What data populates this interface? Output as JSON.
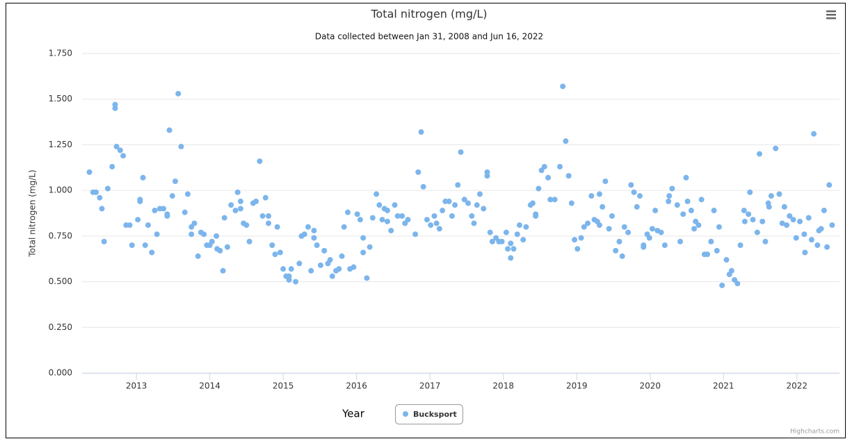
{
  "chart_data": {
    "type": "scatter",
    "title": "Total nitrogen (mg/L)",
    "subtitle": "Data collected between Jan 31, 2008 and Jun 16, 2022",
    "x_label": "Year",
    "y_label": "Total nitrogen (mg/L)",
    "credits": "Highcharts.com",
    "legend": "bottom",
    "grid": true,
    "xlim": [
      2012.26,
      2022.58
    ],
    "xticks": [
      2013,
      2014,
      2015,
      2016,
      2017,
      2018,
      2019,
      2020,
      2021,
      2022
    ],
    "ylim": [
      0,
      1.75
    ],
    "yticks": [
      {
        "value": 0,
        "label": "0.000"
      },
      {
        "value": 0.25,
        "label": "0.250"
      },
      {
        "value": 0.5,
        "label": "0.500"
      },
      {
        "value": 0.75,
        "label": "0.750"
      },
      {
        "value": 1,
        "label": "1.000"
      },
      {
        "value": 1.25,
        "label": "1.250"
      },
      {
        "value": 1.5,
        "label": "1.500"
      },
      {
        "value": 1.75,
        "label": "1.750"
      }
    ],
    "series": [
      {
        "name": "Bucksport",
        "color": "#7cb5ec",
        "x": [
          2012.36,
          2012.41,
          2012.45,
          2012.5,
          2012.53,
          2012.56,
          2012.61,
          2012.67,
          2012.71,
          2012.71,
          2012.73,
          2012.78,
          2012.82,
          2012.86,
          2012.91,
          2012.94,
          2013.02,
          2013.05,
          2013.05,
          2013.09,
          2013.12,
          2013.16,
          2013.21,
          2013.25,
          2013.28,
          2013.32,
          2013.37,
          2013.42,
          2013.42,
          2013.45,
          2013.49,
          2013.53,
          2013.57,
          2013.61,
          2013.66,
          2013.7,
          2013.75,
          2013.75,
          2013.79,
          2013.84,
          2013.88,
          2013.92,
          2013.96,
          2014.0,
          2014.03,
          2014.09,
          2014.1,
          2014.14,
          2014.18,
          2014.2,
          2014.24,
          2014.29,
          2014.35,
          2014.38,
          2014.42,
          2014.42,
          2014.46,
          2014.5,
          2014.54,
          2014.59,
          2014.63,
          2014.68,
          2014.72,
          2014.76,
          2014.8,
          2014.8,
          2014.85,
          2014.89,
          2014.92,
          2014.96,
          2015.0,
          2015.04,
          2015.08,
          2015.08,
          2015.11,
          2015.17,
          2015.22,
          2015.25,
          2015.29,
          2015.34,
          2015.38,
          2015.42,
          2015.42,
          2015.46,
          2015.51,
          2015.56,
          2015.61,
          2015.64,
          2015.67,
          2015.72,
          2015.76,
          2015.8,
          2015.83,
          2015.88,
          2015.91,
          2015.96,
          2016.01,
          2016.05,
          2016.09,
          2016.09,
          2016.14,
          2016.18,
          2016.22,
          2016.27,
          2016.31,
          2016.35,
          2016.38,
          2016.42,
          2016.42,
          2016.47,
          2016.52,
          2016.56,
          2016.62,
          2016.66,
          2016.7,
          2016.8,
          2016.84,
          2016.88,
          2016.91,
          2016.96,
          2017.01,
          2017.06,
          2017.09,
          2017.13,
          2017.17,
          2017.21,
          2017.26,
          2017.3,
          2017.34,
          2017.38,
          2017.42,
          2017.47,
          2017.52,
          2017.57,
          2017.6,
          2017.64,
          2017.68,
          2017.73,
          2017.78,
          2017.78,
          2017.82,
          2017.85,
          2017.9,
          2017.94,
          2017.98,
          2018.04,
          2018.06,
          2018.1,
          2018.1,
          2018.14,
          2018.19,
          2018.22,
          2018.27,
          2018.31,
          2018.37,
          2018.4,
          2018.44,
          2018.44,
          2018.48,
          2018.52,
          2018.56,
          2018.61,
          2018.64,
          2018.7,
          2018.77,
          2018.81,
          2018.85,
          2018.89,
          2018.93,
          2018.97,
          2019.01,
          2019.06,
          2019.1,
          2019.15,
          2019.2,
          2019.24,
          2019.28,
          2019.31,
          2019.31,
          2019.35,
          2019.39,
          2019.44,
          2019.48,
          2019.53,
          2019.58,
          2019.62,
          2019.65,
          2019.7,
          2019.74,
          2019.78,
          2019.82,
          2019.86,
          2019.91,
          2019.91,
          2019.96,
          2019.99,
          2020.03,
          2020.07,
          2020.1,
          2020.15,
          2020.2,
          2020.25,
          2020.26,
          2020.3,
          2020.37,
          2020.41,
          2020.45,
          2020.49,
          2020.51,
          2020.56,
          2020.6,
          2020.62,
          2020.66,
          2020.7,
          2020.74,
          2020.78,
          2020.83,
          2020.87,
          2020.91,
          2020.94,
          2020.98,
          2021.04,
          2021.08,
          2021.11,
          2021.15,
          2021.19,
          2021.23,
          2021.28,
          2021.29,
          2021.34,
          2021.36,
          2021.4,
          2021.46,
          2021.49,
          2021.53,
          2021.57,
          2021.61,
          2021.62,
          2021.65,
          2021.71,
          2021.76,
          2021.8,
          2021.83,
          2021.86,
          2021.9,
          2021.95,
          2021.99,
          2022.04,
          2022.1,
          2022.11,
          2022.16,
          2022.2,
          2022.23,
          2022.28,
          2022.3,
          2022.33,
          2022.37,
          2022.41,
          2022.44,
          2022.48
        ],
        "values": [
          1.1,
          0.99,
          0.99,
          0.96,
          0.9,
          0.72,
          1.01,
          1.13,
          1.47,
          1.45,
          1.24,
          1.22,
          1.19,
          0.81,
          0.81,
          0.7,
          0.84,
          0.95,
          0.94,
          1.07,
          0.7,
          0.81,
          0.66,
          0.89,
          0.76,
          0.9,
          0.9,
          0.87,
          0.86,
          1.33,
          0.97,
          1.05,
          1.53,
          1.24,
          0.88,
          0.98,
          0.76,
          0.8,
          0.82,
          0.64,
          0.77,
          0.76,
          0.7,
          0.7,
          0.72,
          0.75,
          0.68,
          0.67,
          0.56,
          0.85,
          0.69,
          0.92,
          0.89,
          0.99,
          0.94,
          0.9,
          0.82,
          0.81,
          0.72,
          0.93,
          0.94,
          1.16,
          0.86,
          0.96,
          0.86,
          0.82,
          0.7,
          0.65,
          0.8,
          0.66,
          0.57,
          0.53,
          0.53,
          0.51,
          0.57,
          0.5,
          0.6,
          0.75,
          0.76,
          0.8,
          0.56,
          0.78,
          0.74,
          0.7,
          0.59,
          0.67,
          0.6,
          0.62,
          0.53,
          0.56,
          0.57,
          0.64,
          0.8,
          0.88,
          0.57,
          0.58,
          0.87,
          0.84,
          0.74,
          0.66,
          0.52,
          0.69,
          0.85,
          0.98,
          0.92,
          0.84,
          0.9,
          0.89,
          0.83,
          0.78,
          0.92,
          0.86,
          0.86,
          0.82,
          0.84,
          0.76,
          1.1,
          1.32,
          1.02,
          0.84,
          0.81,
          0.86,
          0.82,
          0.79,
          0.89,
          0.94,
          0.94,
          0.86,
          0.92,
          1.03,
          1.21,
          0.95,
          0.93,
          0.86,
          0.82,
          0.92,
          0.98,
          0.9,
          1.1,
          1.08,
          0.77,
          0.72,
          0.74,
          0.72,
          0.72,
          0.77,
          0.68,
          0.71,
          0.63,
          0.68,
          0.76,
          0.81,
          0.73,
          0.8,
          0.92,
          0.93,
          0.86,
          0.87,
          1.01,
          1.11,
          1.13,
          1.07,
          0.95,
          0.95,
          1.13,
          1.57,
          1.27,
          1.08,
          0.93,
          0.73,
          0.68,
          0.74,
          0.8,
          0.82,
          0.97,
          0.84,
          0.83,
          0.98,
          0.81,
          0.91,
          1.05,
          0.79,
          0.86,
          0.67,
          0.72,
          0.64,
          0.8,
          0.77,
          1.03,
          0.99,
          0.91,
          0.97,
          0.7,
          0.69,
          0.76,
          0.74,
          0.79,
          0.89,
          0.78,
          0.77,
          0.7,
          0.94,
          0.97,
          1.01,
          0.92,
          0.72,
          0.87,
          1.07,
          0.94,
          0.89,
          0.79,
          0.83,
          0.81,
          0.95,
          0.65,
          0.65,
          0.72,
          0.89,
          0.67,
          0.8,
          0.48,
          0.62,
          0.54,
          0.56,
          0.51,
          0.49,
          0.7,
          0.89,
          0.83,
          0.87,
          0.99,
          0.84,
          0.77,
          1.2,
          0.83,
          0.72,
          0.93,
          0.91,
          0.97,
          1.23,
          0.98,
          0.82,
          0.91,
          0.81,
          0.86,
          0.84,
          0.74,
          0.83,
          0.76,
          0.66,
          0.85,
          0.73,
          1.31,
          0.7,
          0.78,
          0.79,
          0.89,
          0.69,
          1.03,
          0.81
        ]
      }
    ]
  }
}
